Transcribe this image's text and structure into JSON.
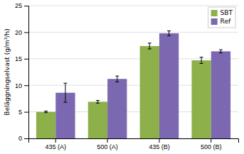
{
  "chart_data": {
    "type": "bar",
    "ylabel": "Beläggningselvast (g/m³/h)",
    "categories": [
      "435 (A)",
      "500 (A)",
      "435 (B)",
      "500 (B)"
    ],
    "series": [
      {
        "name": "SBT",
        "color": "#8DB04A",
        "values": [
          5.0,
          6.9,
          17.4,
          14.7
        ],
        "errors": [
          0.15,
          0.25,
          0.55,
          0.6
        ]
      },
      {
        "name": "Ref",
        "color": "#7B68B0",
        "values": [
          8.6,
          11.2,
          19.8,
          16.4
        ],
        "errors": [
          1.8,
          0.55,
          0.45,
          0.3
        ]
      }
    ],
    "ylim": [
      0,
      25
    ],
    "yticks": [
      0,
      5,
      10,
      15,
      20,
      25
    ],
    "grid": true,
    "legend": "upper right"
  }
}
